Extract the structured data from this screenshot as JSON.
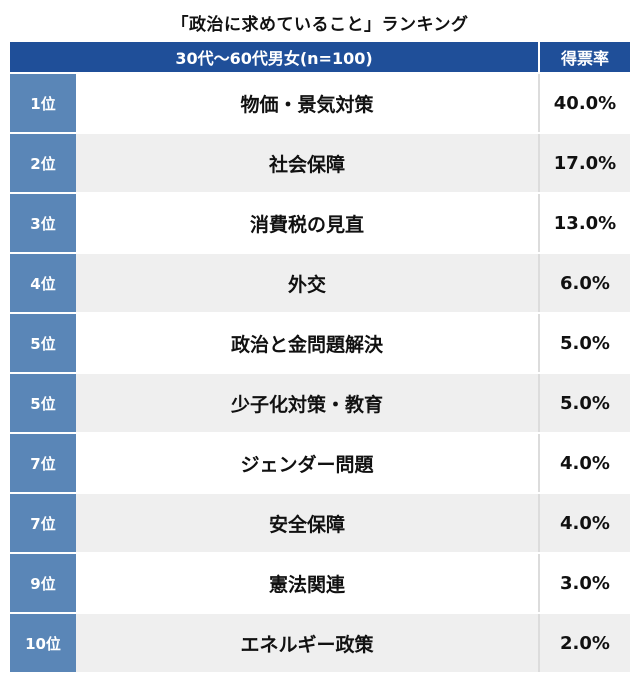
{
  "chart_data": {
    "type": "table",
    "title": "「政治に求めていること」ランキング",
    "columns": [
      "30代〜60代男女(n=100)",
      "得票率"
    ],
    "rows": [
      {
        "rank": "1位",
        "label": "物価・景気対策",
        "value": "40.0%"
      },
      {
        "rank": "2位",
        "label": "社会保障",
        "value": "17.0%"
      },
      {
        "rank": "3位",
        "label": "消費税の見直",
        "value": "13.0%"
      },
      {
        "rank": "4位",
        "label": "外交",
        "value": "6.0%"
      },
      {
        "rank": "5位",
        "label": "政治と金問題解決",
        "value": "5.0%"
      },
      {
        "rank": "5位",
        "label": "少子化対策・教育",
        "value": "5.0%"
      },
      {
        "rank": "7位",
        "label": "ジェンダー問題",
        "value": "4.0%"
      },
      {
        "rank": "7位",
        "label": "安全保障",
        "value": "4.0%"
      },
      {
        "rank": "9位",
        "label": "憲法関連",
        "value": "3.0%"
      },
      {
        "rank": "10位",
        "label": "エネルギー政策",
        "value": "2.0%"
      }
    ]
  }
}
